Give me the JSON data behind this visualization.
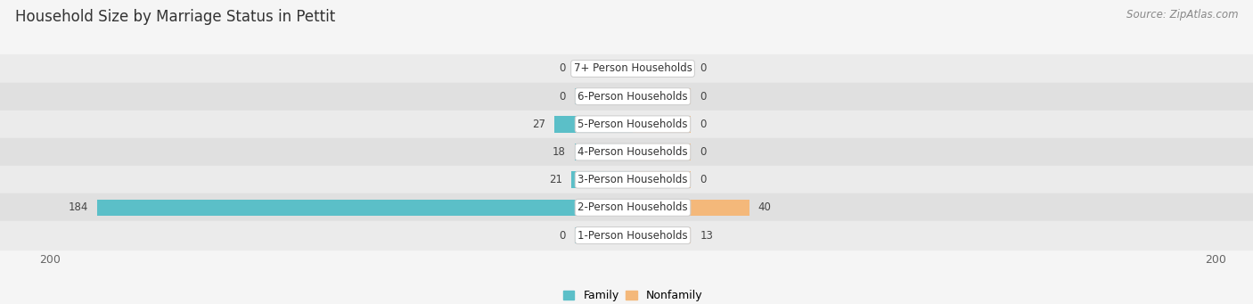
{
  "title": "Household Size by Marriage Status in Pettit",
  "source": "Source: ZipAtlas.com",
  "categories": [
    "7+ Person Households",
    "6-Person Households",
    "5-Person Households",
    "4-Person Households",
    "3-Person Households",
    "2-Person Households",
    "1-Person Households"
  ],
  "family_values": [
    0,
    0,
    27,
    18,
    21,
    184,
    0
  ],
  "nonfamily_values": [
    0,
    0,
    0,
    0,
    0,
    40,
    13
  ],
  "family_color": "#5BBFC8",
  "nonfamily_color": "#F4B87A",
  "row_bg_even": "#EBEBEB",
  "row_bg_odd": "#E0E0E0",
  "fig_bg_color": "#F5F5F5",
  "label_bg_color": "#FFFFFF",
  "label_edge_color": "#D0D0D0",
  "xlim": 200,
  "min_bar_width": 20,
  "title_fontsize": 12,
  "source_fontsize": 8.5,
  "tick_fontsize": 9,
  "value_fontsize": 8.5,
  "cat_fontsize": 8.5,
  "bar_height": 0.6
}
